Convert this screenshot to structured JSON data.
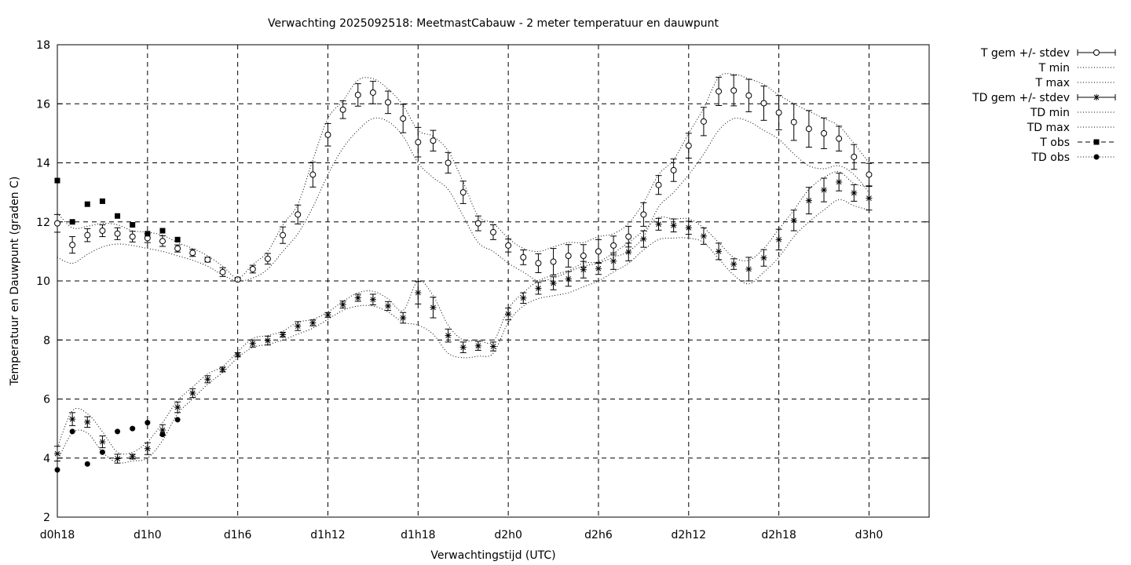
{
  "chart_data": {
    "type": "line",
    "title": "Verwachting 2025092518: MeetmastCabauw - 2 meter temperatuur en dauwpunt",
    "xlabel": "Verwachtingstijd (UTC)",
    "ylabel": "Temperatuur en Dauwpunt (graden C)",
    "xlim": [
      18,
      76
    ],
    "ylim": [
      2,
      18
    ],
    "x_ticks": [
      {
        "x": 18,
        "label": "d0h18"
      },
      {
        "x": 24,
        "label": "d1h0"
      },
      {
        "x": 30,
        "label": "d1h6"
      },
      {
        "x": 36,
        "label": "d1h12"
      },
      {
        "x": 42,
        "label": "d1h18"
      },
      {
        "x": 48,
        "label": "d2h0"
      },
      {
        "x": 54,
        "label": "d2h6"
      },
      {
        "x": 60,
        "label": "d2h12"
      },
      {
        "x": 66,
        "label": "d2h18"
      },
      {
        "x": 72,
        "label": "d3h0"
      }
    ],
    "y_ticks": [
      2,
      4,
      6,
      8,
      10,
      12,
      14,
      16,
      18
    ],
    "grid": true,
    "legend_position": "outside-right",
    "x": [
      18,
      19,
      20,
      21,
      22,
      23,
      24,
      25,
      26,
      27,
      28,
      29,
      30,
      31,
      32,
      33,
      34,
      35,
      36,
      37,
      38,
      39,
      40,
      41,
      42,
      43,
      44,
      45,
      46,
      47,
      48,
      49,
      50,
      51,
      52,
      53,
      54,
      55,
      56,
      57,
      58,
      59,
      60,
      61,
      62,
      63,
      64,
      65,
      66,
      67,
      68,
      69,
      70,
      71,
      72
    ],
    "series": [
      {
        "name": "T gem +/- stdev",
        "marker": "open-circle",
        "mean": [
          11.95,
          11.22,
          11.55,
          11.7,
          11.6,
          11.5,
          11.45,
          11.35,
          11.1,
          10.95,
          10.72,
          10.3,
          10.05,
          10.4,
          10.75,
          11.55,
          12.25,
          13.6,
          14.95,
          15.8,
          16.3,
          16.38,
          16.05,
          15.5,
          14.7,
          14.75,
          14.0,
          13.0,
          11.95,
          11.65,
          11.2,
          10.8,
          10.6,
          10.65,
          10.85,
          10.85,
          11.0,
          11.2,
          11.5,
          12.25,
          13.25,
          13.75,
          14.58,
          15.4,
          16.42,
          16.45,
          16.28,
          16.02,
          15.7,
          15.38,
          15.15,
          15.0,
          14.82,
          14.2,
          13.6
        ],
        "stdev": [
          0.3,
          0.28,
          0.22,
          0.2,
          0.2,
          0.18,
          0.15,
          0.18,
          0.12,
          0.12,
          0.08,
          0.15,
          0.04,
          0.13,
          0.18,
          0.28,
          0.32,
          0.42,
          0.38,
          0.3,
          0.38,
          0.38,
          0.38,
          0.48,
          0.5,
          0.35,
          0.35,
          0.38,
          0.25,
          0.25,
          0.22,
          0.25,
          0.32,
          0.45,
          0.38,
          0.38,
          0.4,
          0.32,
          0.35,
          0.4,
          0.32,
          0.38,
          0.42,
          0.48,
          0.48,
          0.52,
          0.55,
          0.58,
          0.58,
          0.62,
          0.62,
          0.52,
          0.42,
          0.42,
          0.38
        ]
      },
      {
        "name": "T min",
        "style": "dotted",
        "values": [
          10.8,
          10.6,
          10.9,
          11.15,
          11.25,
          11.2,
          11.1,
          11.0,
          10.85,
          10.7,
          10.5,
          10.2,
          10.0,
          10.1,
          10.4,
          11.0,
          11.6,
          12.5,
          13.6,
          14.5,
          15.1,
          15.5,
          15.4,
          14.9,
          14.0,
          13.5,
          13.1,
          12.2,
          11.3,
          11.0,
          10.6,
          10.3,
          10.0,
          10.1,
          10.3,
          10.5,
          10.6,
          10.8,
          11.0,
          11.5,
          12.5,
          13.0,
          13.6,
          14.3,
          15.1,
          15.5,
          15.4,
          15.1,
          14.8,
          14.3,
          13.9,
          13.8,
          13.9,
          13.6,
          13.0
        ]
      },
      {
        "name": "T max",
        "style": "dotted",
        "values": [
          12.3,
          11.8,
          11.85,
          11.95,
          11.9,
          11.7,
          11.65,
          11.55,
          11.3,
          11.1,
          10.85,
          10.5,
          10.1,
          10.55,
          11.0,
          11.9,
          12.6,
          14.1,
          15.5,
          16.1,
          16.8,
          16.85,
          16.5,
          15.95,
          15.1,
          14.9,
          14.4,
          13.35,
          12.2,
          11.95,
          11.45,
          11.1,
          11.0,
          11.15,
          11.3,
          11.3,
          11.5,
          11.6,
          11.95,
          12.65,
          13.6,
          14.1,
          15.0,
          15.85,
          16.9,
          17.0,
          16.85,
          16.65,
          16.3,
          16.0,
          15.75,
          15.5,
          15.25,
          14.65,
          14.0
        ]
      },
      {
        "name": "TD gem +/- stdev",
        "marker": "star",
        "mean": [
          4.15,
          5.32,
          5.22,
          4.55,
          3.98,
          4.05,
          4.32,
          4.95,
          5.72,
          6.2,
          6.67,
          7.0,
          7.5,
          7.88,
          7.98,
          8.18,
          8.47,
          8.58,
          8.85,
          9.2,
          9.43,
          9.37,
          9.15,
          8.75,
          9.6,
          9.1,
          8.15,
          7.75,
          7.8,
          7.78,
          8.88,
          9.42,
          9.75,
          9.92,
          10.07,
          10.38,
          10.42,
          10.67,
          10.98,
          11.42,
          11.92,
          11.88,
          11.8,
          11.52,
          11.0,
          10.57,
          10.4,
          10.78,
          11.4,
          12.05,
          12.72,
          13.08,
          13.35,
          12.98,
          12.8
        ],
        "stdev": [
          0.25,
          0.22,
          0.18,
          0.2,
          0.15,
          0.08,
          0.2,
          0.18,
          0.18,
          0.15,
          0.12,
          0.08,
          0.07,
          0.12,
          0.15,
          0.08,
          0.15,
          0.1,
          0.08,
          0.12,
          0.12,
          0.18,
          0.15,
          0.18,
          0.38,
          0.35,
          0.22,
          0.18,
          0.15,
          0.15,
          0.2,
          0.18,
          0.2,
          0.22,
          0.25,
          0.28,
          0.2,
          0.28,
          0.3,
          0.28,
          0.2,
          0.22,
          0.22,
          0.28,
          0.28,
          0.18,
          0.4,
          0.28,
          0.35,
          0.35,
          0.45,
          0.4,
          0.3,
          0.28,
          0.4
        ]
      },
      {
        "name": "TD min",
        "style": "dotted",
        "values": [
          3.9,
          4.85,
          4.85,
          4.2,
          3.85,
          3.9,
          4.0,
          4.6,
          5.5,
          6.0,
          6.5,
          6.9,
          7.4,
          7.75,
          7.85,
          8.0,
          8.2,
          8.4,
          8.7,
          9.0,
          9.15,
          9.15,
          8.95,
          8.6,
          8.5,
          8.2,
          7.55,
          7.4,
          7.45,
          7.55,
          8.6,
          9.15,
          9.4,
          9.5,
          9.6,
          9.8,
          10.0,
          10.3,
          10.6,
          11.05,
          11.4,
          11.45,
          11.45,
          11.3,
          10.75,
          10.2,
          9.9,
          10.3,
          10.8,
          11.5,
          12.0,
          12.4,
          12.75,
          12.55,
          12.4
        ]
      },
      {
        "name": "TD max",
        "style": "dotted",
        "values": [
          4.35,
          5.6,
          5.5,
          4.9,
          4.2,
          4.2,
          4.55,
          5.2,
          5.95,
          6.4,
          6.85,
          7.1,
          7.6,
          8.05,
          8.15,
          8.3,
          8.6,
          8.7,
          8.95,
          9.3,
          9.6,
          9.65,
          9.4,
          9.0,
          10.0,
          9.5,
          8.5,
          8.0,
          8.0,
          7.95,
          9.05,
          9.6,
          10.0,
          10.2,
          10.35,
          10.6,
          10.65,
          10.95,
          11.3,
          11.7,
          12.15,
          12.1,
          12.1,
          11.8,
          11.3,
          10.8,
          10.7,
          11.1,
          11.75,
          12.4,
          13.1,
          13.5,
          13.7,
          13.3,
          13.2
        ]
      },
      {
        "name": "T obs",
        "marker": "filled-square",
        "x": [
          18,
          19,
          20,
          21,
          22,
          23,
          24,
          25,
          26
        ],
        "values": [
          13.4,
          12.0,
          12.6,
          12.7,
          12.2,
          11.9,
          11.6,
          11.7,
          11.4
        ]
      },
      {
        "name": "TD obs",
        "marker": "filled-circle",
        "x": [
          18,
          19,
          20,
          21,
          22,
          23,
          24,
          25,
          26
        ],
        "values": [
          3.6,
          4.9,
          3.8,
          4.2,
          4.9,
          5.0,
          5.2,
          4.8,
          5.3
        ]
      }
    ]
  }
}
